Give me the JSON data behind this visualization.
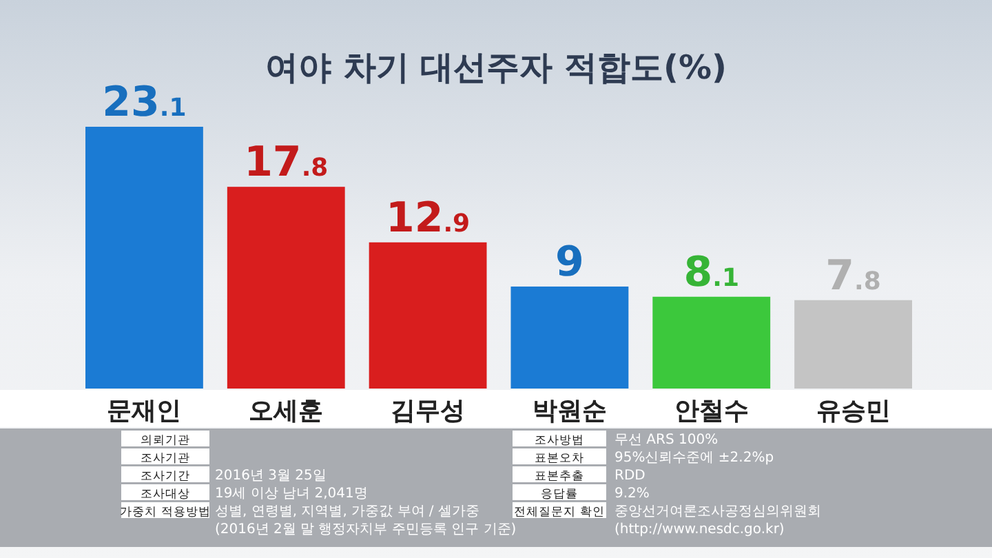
{
  "chart_data": {
    "type": "bar",
    "title": "여야 차기 대선주자 적합도(%)",
    "categories": [
      "문재인",
      "오세훈",
      "김무성",
      "박원순",
      "안철수",
      "유승민"
    ],
    "values": [
      23.1,
      17.8,
      12.9,
      9,
      8.1,
      7.8
    ],
    "colors": [
      "#1b7bd4",
      "#d91e1e",
      "#d91e1e",
      "#1b7bd4",
      "#3cc83c",
      "#c4c4c4"
    ],
    "data_labels": true,
    "annotations": [
      "의뢰기관",
      "조사기관",
      "조사기간",
      "2016년 3월 25일",
      "조사대상",
      "19세 이상 남녀 2,041명",
      "가중치 적용방법",
      "성별, 연령별, 지역별, 가중값 부여 / 셀가중",
      "(2016년 2월 말 행정자치부 주민등록 인구 기준)",
      "조사방법",
      "무선 ARS 100%",
      "표본오차",
      "95%신뢰수준에 ±2.2%p",
      "표본추출",
      "RDD",
      "응답률",
      "9.2%",
      "전체질문지 확인",
      "중앙선거여론조사공정심의위원회",
      "(http://www.nesdc.go.kr)"
    ]
  }
}
